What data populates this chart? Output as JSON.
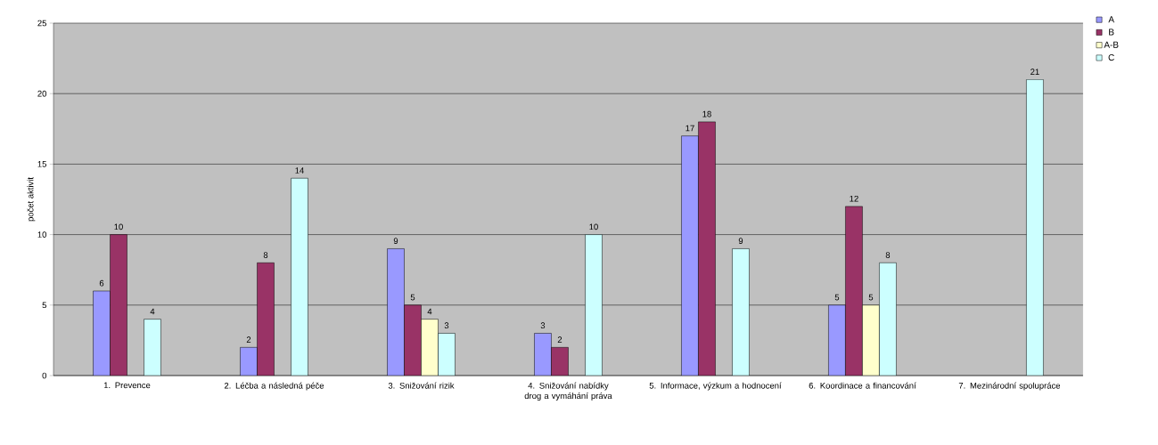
{
  "chart_data": {
    "type": "bar",
    "ylabel": "počet aktivit",
    "categories": [
      "1. Prevence",
      "2. Léčba a následná péče",
      "3. Snižování rizik",
      "4. Snižování nabídky drog a vymáhání práva",
      "5. Informace, výzkum a hodnocení",
      "6. Koordinace a financování",
      "7. Mezinárodní spolupráce"
    ],
    "series": [
      {
        "name": "A",
        "color": "#9999ff",
        "values": [
          6,
          2,
          9,
          3,
          17,
          5,
          null
        ]
      },
      {
        "name": "B",
        "color": "#993366",
        "values": [
          10,
          8,
          5,
          2,
          18,
          12,
          null
        ]
      },
      {
        "name": "A-B",
        "color": "#ffffcc",
        "values": [
          null,
          null,
          4,
          null,
          null,
          5,
          null
        ]
      },
      {
        "name": "C",
        "color": "#ccffff",
        "values": [
          4,
          14,
          3,
          10,
          9,
          8,
          21
        ]
      }
    ],
    "ylim": [
      0,
      25
    ],
    "yticks": [
      0,
      5,
      10,
      15,
      20,
      25
    ],
    "grid": "y",
    "legend": "top right",
    "data_labels": true
  }
}
